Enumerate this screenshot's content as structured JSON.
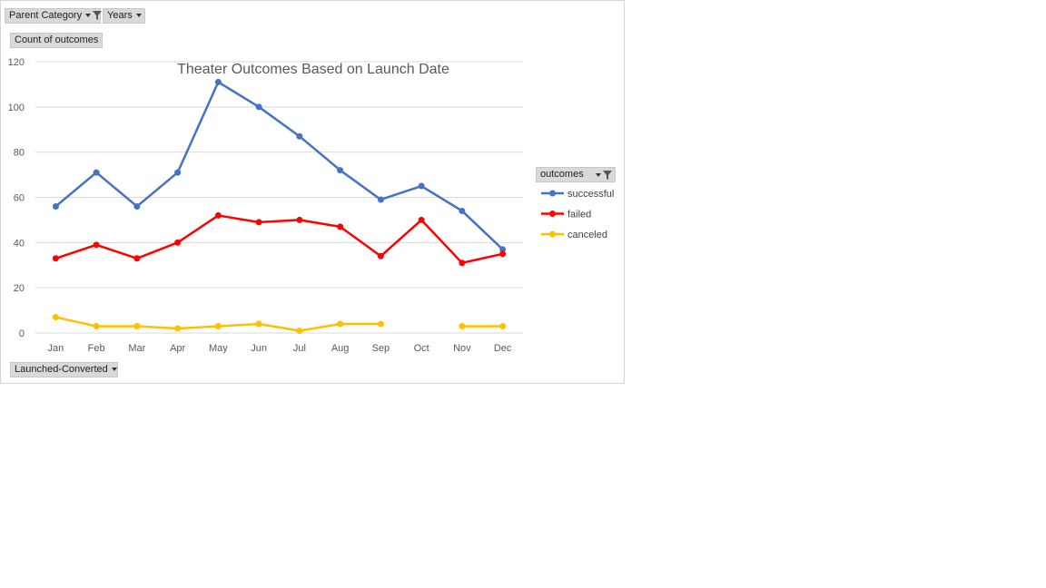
{
  "pivot_buttons": {
    "parent_category": "Parent Category",
    "years": "Years",
    "values_field": "Count of outcomes",
    "axis_field": "Launched-Converted",
    "legend_field": "outcomes"
  },
  "chart_data": {
    "type": "line",
    "title": "Theater Outcomes Based on Launch Date",
    "categories": [
      "Jan",
      "Feb",
      "Mar",
      "Apr",
      "May",
      "Jun",
      "Jul",
      "Aug",
      "Sep",
      "Oct",
      "Nov",
      "Dec"
    ],
    "ylim": [
      0,
      120
    ],
    "yticks": [
      0,
      20,
      40,
      60,
      80,
      100,
      120
    ],
    "grid": true,
    "legend_position": "right",
    "series": [
      {
        "name": "successful",
        "color": "#4472c4",
        "values": [
          56,
          71,
          56,
          71,
          111,
          100,
          87,
          72,
          59,
          65,
          54,
          37
        ]
      },
      {
        "name": "failed",
        "color": "#ff0000",
        "values": [
          33,
          39,
          33,
          40,
          52,
          49,
          50,
          47,
          34,
          50,
          31,
          35
        ]
      },
      {
        "name": "canceled",
        "color": "#ffc000",
        "values": [
          7,
          3,
          3,
          2,
          3,
          4,
          1,
          4,
          4,
          null,
          3,
          3
        ]
      }
    ]
  }
}
